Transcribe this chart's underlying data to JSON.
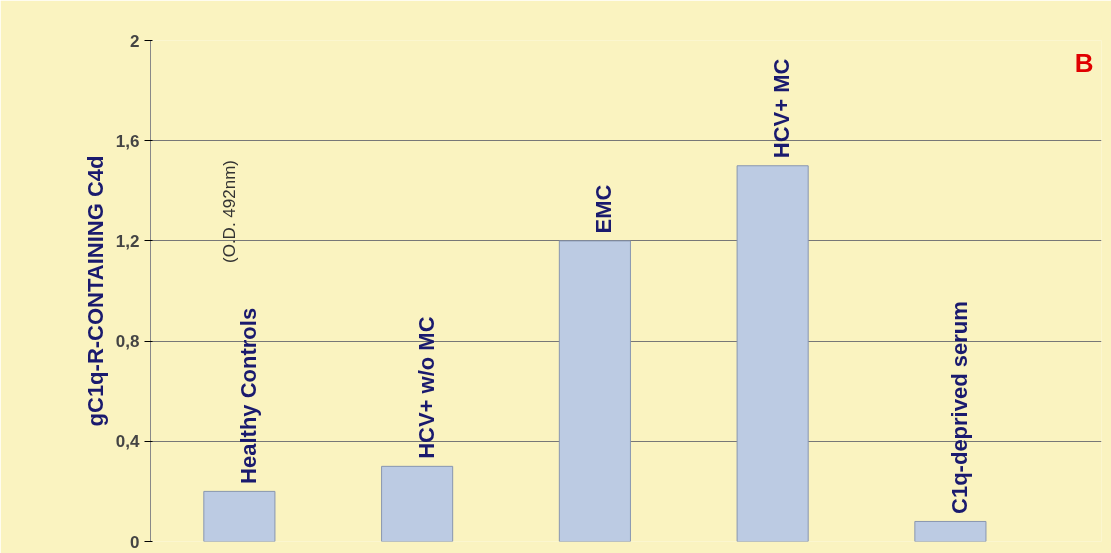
{
  "chart_data": {
    "type": "bar",
    "ylabel": "gC1q-R-CONTAINING C4d",
    "annotations": [
      "(O.D. 492nm)",
      "B"
    ],
    "categories": [
      "Healthy Controls",
      "HCV+ w/o MC",
      "EMC",
      "HCV+ MC",
      "C1q-deprived serum"
    ],
    "values": [
      0.2,
      0.3,
      1.2,
      1.5,
      0.08
    ],
    "color": "#bccbe3",
    "ylim": [
      0,
      2
    ],
    "yticks": [
      0,
      {
        "value": 0.4,
        "label": "0,4"
      },
      {
        "value": 0.8,
        "label": "0,8"
      },
      {
        "value": 1.2,
        "label": "1,2"
      },
      {
        "value": 1.6,
        "label": "1,6"
      },
      2
    ],
    "grid": "y"
  }
}
